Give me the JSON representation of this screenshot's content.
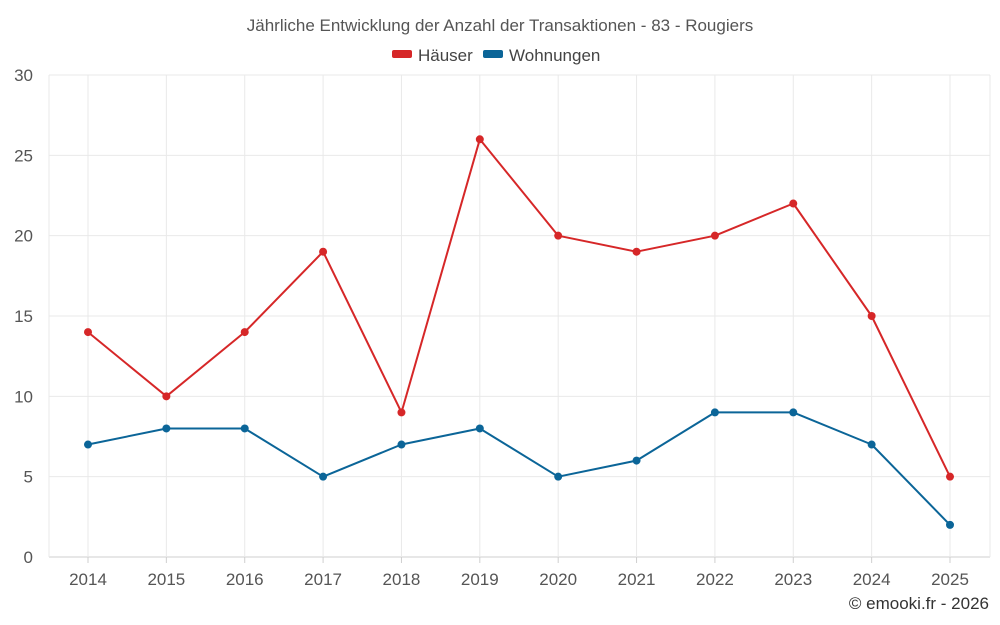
{
  "chart_data": {
    "type": "line",
    "title": "Jährliche Entwicklung der Anzahl der Transaktionen - 83 - Rougiers",
    "categories": [
      "2014",
      "2015",
      "2016",
      "2017",
      "2018",
      "2019",
      "2020",
      "2021",
      "2022",
      "2023",
      "2024",
      "2025"
    ],
    "series": [
      {
        "name": "Häuser",
        "color": "#d62728",
        "values": [
          14,
          10,
          14,
          19,
          9,
          26,
          20,
          19,
          20,
          22,
          15,
          5
        ]
      },
      {
        "name": "Wohnungen",
        "color": "#0b6598",
        "values": [
          7,
          8,
          8,
          5,
          7,
          8,
          5,
          6,
          9,
          9,
          7,
          2
        ]
      }
    ],
    "ylim": [
      0,
      30
    ],
    "yticks": [
      0,
      5,
      10,
      15,
      20,
      25,
      30
    ],
    "xlabel": "",
    "ylabel": "",
    "grid": true,
    "legend_position": "top-center"
  },
  "footer": {
    "credit": "© emooki.fr - 2026"
  }
}
